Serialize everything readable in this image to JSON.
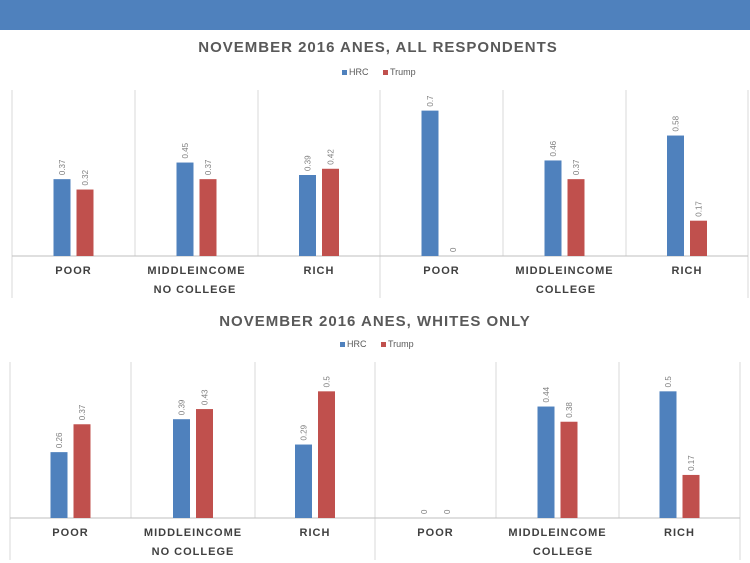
{
  "colors": {
    "topbar": "#4f81bd",
    "hrc": "#4f81bd",
    "trump": "#c0504d",
    "grid": "#d9d9d9",
    "axis": "#bfbfbf"
  },
  "chart_data": [
    {
      "type": "bar",
      "title": "NOVEMBER 2016 ANES, ALL RESPONDENTS",
      "categories": [
        "POOR",
        "MIDDLEINCOME",
        "RICH",
        "POOR",
        "MIDDLEINCOME",
        "RICH"
      ],
      "groups": [
        {
          "label": "NO COLLEGE",
          "span": [
            0,
            2
          ]
        },
        {
          "label": "COLLEGE",
          "span": [
            3,
            5
          ]
        }
      ],
      "series": [
        {
          "name": "HRC",
          "values": [
            0.37,
            0.45,
            0.39,
            0.7,
            0.46,
            0.58
          ]
        },
        {
          "name": "Trump",
          "values": [
            0.32,
            0.37,
            0.42,
            0,
            0.37,
            0.17
          ]
        }
      ],
      "ylim": [
        0,
        0.78
      ],
      "legend": "top-center"
    },
    {
      "type": "bar",
      "title": "NOVEMBER 2016 ANES, WHITES ONLY",
      "categories": [
        "POOR",
        "MIDDLEINCOME",
        "RICH",
        "POOR",
        "MIDDLEINCOME",
        "RICH"
      ],
      "groups": [
        {
          "label": "NO COLLEGE",
          "span": [
            0,
            2
          ]
        },
        {
          "label": "COLLEGE",
          "span": [
            3,
            5
          ]
        }
      ],
      "series": [
        {
          "name": "HRC",
          "values": [
            0.26,
            0.39,
            0.29,
            0,
            0.44,
            0.5
          ]
        },
        {
          "name": "Trump",
          "values": [
            0.37,
            0.43,
            0.5,
            0,
            0.38,
            0.17
          ]
        }
      ],
      "ylim": [
        0,
        0.6
      ],
      "legend": "top-center"
    }
  ]
}
